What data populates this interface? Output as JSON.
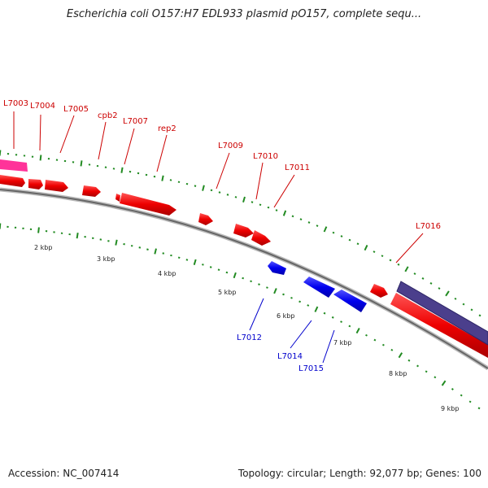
{
  "title": "Escherichia coli O157:H7 EDL933 plasmid pO157, complete sequ...",
  "footer": {
    "accession": "Accession: NC_007414",
    "summary": "Topology: circular; Length: 92,077 bp; Genes: 100"
  },
  "colors": {
    "forward_gene": "#ee0000",
    "reverse_gene": "#0000ee",
    "rna_gene": "#ff3399",
    "region": "#4b3f8c",
    "backbone": "#888888",
    "tick": "#228b22",
    "label_forward": "#cc0000",
    "label_reverse": "#0000cc"
  },
  "kbp_labels": [
    "2 kbp",
    "3 kbp",
    "4 kbp",
    "5 kbp",
    "6 kbp",
    "7 kbp",
    "8 kbp",
    "9 kbp"
  ],
  "genes_forward_labels": [
    "L7003",
    "L7004",
    "L7005",
    "cpb2",
    "L7007",
    "rep2",
    "L7009",
    "L7010",
    "L7011",
    "L7016"
  ],
  "genes_reverse_labels": [
    "L7012",
    "L7014",
    "L7015"
  ]
}
